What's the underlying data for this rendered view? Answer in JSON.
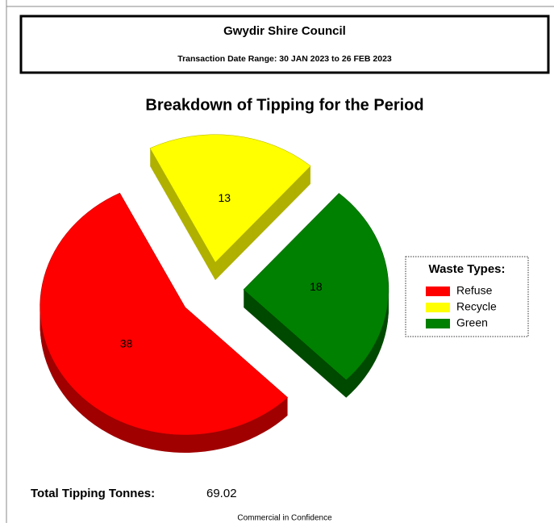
{
  "header": {
    "title": "Gwydir Shire Council",
    "subtitle": "Transaction Date Range: 30 JAN 2023 to 26 FEB 2023"
  },
  "chart_data": {
    "type": "pie",
    "title": "Breakdown of Tipping for the Period",
    "legend_title": "Waste Types:",
    "categories": [
      "Refuse",
      "Recycle",
      "Green"
    ],
    "values": [
      38,
      13,
      18
    ],
    "colors": [
      "#ff0000",
      "#ffff00",
      "#008000"
    ],
    "side_colors": [
      "#a00000",
      "#b0b000",
      "#004a00"
    ]
  },
  "footer": {
    "total_label": "Total Tipping Tonnes:",
    "total_value": 69.02,
    "note": "Commercial in Confidence"
  }
}
